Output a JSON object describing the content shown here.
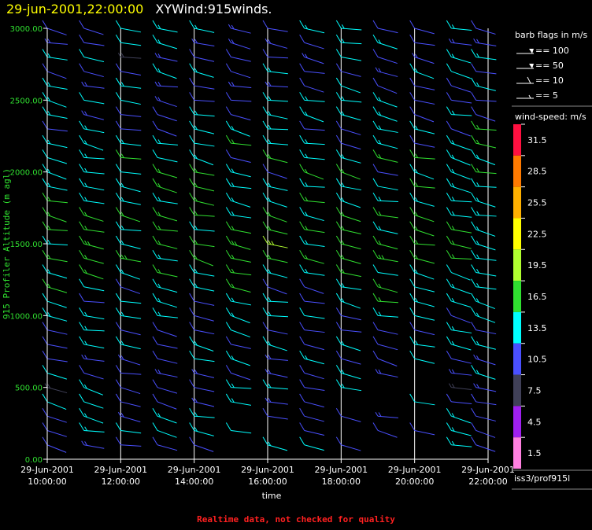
{
  "header": {
    "date": "29-jun-2001,22:00:00",
    "description": "XYWind:915winds."
  },
  "legend": {
    "barb_title": "barb flags in m/s",
    "barbs": [
      {
        "label": "== 100",
        "speed": 100
      },
      {
        "label": "== 50",
        "speed": 50
      },
      {
        "label": "== 10",
        "speed": 10
      },
      {
        "label": "== 5",
        "speed": 5
      }
    ],
    "speed_title": "wind-speed: m/s",
    "scale": [
      {
        "label": "31.5",
        "color": "#ff1040"
      },
      {
        "label": "28.5",
        "color": "#ff7a00"
      },
      {
        "label": "25.5",
        "color": "#ffb000"
      },
      {
        "label": "22.5",
        "color": "#ffff00"
      },
      {
        "label": "19.5",
        "color": "#b0ff30"
      },
      {
        "label": "16.5",
        "color": "#30e030"
      },
      {
        "label": "13.5",
        "color": "#00ffff"
      },
      {
        "label": "10.5",
        "color": "#4a50ff"
      },
      {
        "label": "7.5",
        "color": "#404058"
      },
      {
        "label": "4.5",
        "color": "#a020f0"
      },
      {
        "label": "1.5",
        "color": "#ff80e0"
      }
    ]
  },
  "source": "iss3/prof915l",
  "footer": "Realtime data, not checked for quality",
  "chart_data": {
    "type": "wind-barb",
    "xlabel": "time",
    "ylabel": "915 Profiler Altitude (m agl)",
    "xlim_hours": [
      10,
      22
    ],
    "ylim": [
      0,
      3000
    ],
    "x_ticks": [
      {
        "line1": "29-Jun-2001",
        "line2": "10:00:00",
        "hour": 10
      },
      {
        "line1": "29-Jun-2001",
        "line2": "12:00:00",
        "hour": 12
      },
      {
        "line1": "29-Jun-2001",
        "line2": "14:00:00",
        "hour": 14
      },
      {
        "line1": "29-Jun-2001",
        "line2": "16:00:00",
        "hour": 16
      },
      {
        "line1": "29-Jun-2001",
        "line2": "18:00:00",
        "hour": 18
      },
      {
        "line1": "29-Jun-2001",
        "line2": "20:00:00",
        "hour": 20
      },
      {
        "line1": "29-Jun-2001",
        "line2": "22:00:00",
        "hour": 22
      }
    ],
    "y_ticks": [
      {
        "label": "0.00",
        "value": 0
      },
      {
        "label": "500.00",
        "value": 500
      },
      {
        "label": "1000.00",
        "value": 1000
      },
      {
        "label": "1500.00",
        "value": 1500
      },
      {
        "label": "2000.00",
        "value": 2000
      },
      {
        "label": "2500.00",
        "value": 2500
      },
      {
        "label": "3000.00",
        "value": 3000
      }
    ],
    "profile_times_hours": [
      10.0,
      11.0,
      12.0,
      13.0,
      14.0,
      15.0,
      16.0,
      17.0,
      18.0,
      19.0,
      20.0,
      21.0,
      21.67
    ],
    "gate_spacing_m": 100,
    "gate_first_m": 100,
    "barbs_per_gate_row": "one per profile time; speeds range 5-20 m/s, direction generally westerly to west-southwesterly",
    "speed_profile": [
      {
        "alt": 100,
        "speed": 12
      },
      {
        "alt": 500,
        "speed": 11
      },
      {
        "alt": 1000,
        "speed": 12
      },
      {
        "alt": 1500,
        "speed": 16
      },
      {
        "alt": 2000,
        "speed": 14
      },
      {
        "alt": 2500,
        "speed": 12
      },
      {
        "alt": 3000,
        "speed": 11
      }
    ],
    "grid": "vertical lines at each 2-hour tick"
  }
}
